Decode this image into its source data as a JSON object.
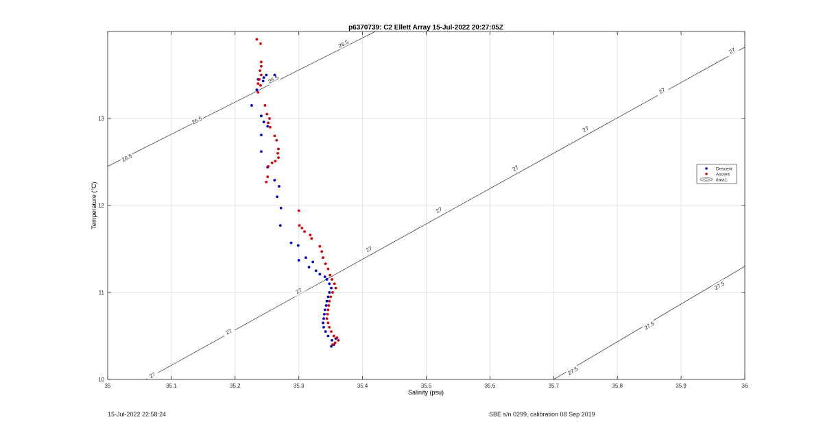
{
  "chart_data": {
    "type": "scatter",
    "title": "p6370739: C2 Ellett Array 15-Jul-2022 20:27:05Z",
    "xlabel": "Salinity (psu)",
    "ylabel": "Temperature (°C)",
    "xlim": [
      35,
      36
    ],
    "ylim": [
      10,
      14
    ],
    "grid": true,
    "xticks": [
      35,
      35.1,
      35.2,
      35.3,
      35.4,
      35.5,
      35.6,
      35.7,
      35.8,
      35.9,
      36
    ],
    "xtick_labels": [
      "35",
      "35.1",
      "35.2",
      "35.3",
      "35.4",
      "35.5",
      "35.6",
      "35.7",
      "35.8",
      "35.9",
      "36"
    ],
    "yticks": [
      10,
      11,
      12,
      13
    ],
    "ytick_labels": [
      "10",
      "11",
      "12",
      "13"
    ],
    "legend_position": "right",
    "legend": [
      "Descent",
      "Ascent",
      "data1"
    ],
    "series": [
      {
        "name": "Descent",
        "color": "#0000cc",
        "points": [
          [
            35.249,
            13.5
          ],
          [
            35.262,
            13.5
          ],
          [
            35.245,
            13.47
          ],
          [
            35.236,
            13.45
          ],
          [
            35.244,
            13.43
          ],
          [
            35.234,
            13.33
          ],
          [
            35.226,
            13.15
          ],
          [
            35.241,
            13.03
          ],
          [
            35.245,
            12.96
          ],
          [
            35.251,
            12.91
          ],
          [
            35.241,
            12.81
          ],
          [
            35.241,
            12.62
          ],
          [
            35.251,
            12.44
          ],
          [
            35.262,
            12.29
          ],
          [
            35.269,
            12.22
          ],
          [
            35.266,
            12.1
          ],
          [
            35.272,
            11.97
          ],
          [
            35.271,
            11.77
          ],
          [
            35.288,
            11.57
          ],
          [
            35.299,
            11.54
          ],
          [
            35.311,
            11.4
          ],
          [
            35.3,
            11.37
          ],
          [
            35.322,
            11.35
          ],
          [
            35.316,
            11.29
          ],
          [
            35.327,
            11.25
          ],
          [
            35.333,
            11.21
          ],
          [
            35.341,
            11.18
          ],
          [
            35.344,
            11.15
          ],
          [
            35.348,
            11.1
          ],
          [
            35.351,
            11.05
          ],
          [
            35.348,
            11.0
          ],
          [
            35.346,
            10.95
          ],
          [
            35.344,
            10.9
          ],
          [
            35.343,
            10.85
          ],
          [
            35.341,
            10.8
          ],
          [
            35.34,
            10.75
          ],
          [
            35.339,
            10.7
          ],
          [
            35.338,
            10.65
          ],
          [
            35.339,
            10.6
          ],
          [
            35.342,
            10.55
          ],
          [
            35.346,
            10.5
          ],
          [
            35.352,
            10.45
          ],
          [
            35.355,
            10.4
          ],
          [
            35.351,
            10.38
          ],
          [
            35.358,
            10.47
          ]
        ]
      },
      {
        "name": "Ascent",
        "color": "#dd0000",
        "points": [
          [
            35.234,
            13.91
          ],
          [
            35.24,
            13.86
          ],
          [
            35.241,
            13.65
          ],
          [
            35.241,
            13.6
          ],
          [
            35.239,
            13.55
          ],
          [
            35.241,
            13.5
          ],
          [
            35.238,
            13.45
          ],
          [
            35.236,
            13.4
          ],
          [
            35.24,
            13.38
          ],
          [
            35.236,
            13.3
          ],
          [
            35.247,
            13.15
          ],
          [
            35.25,
            13.05
          ],
          [
            35.254,
            13.0
          ],
          [
            35.252,
            12.95
          ],
          [
            35.255,
            12.9
          ],
          [
            35.262,
            12.8
          ],
          [
            35.265,
            12.75
          ],
          [
            35.268,
            12.65
          ],
          [
            35.267,
            12.6
          ],
          [
            35.268,
            12.55
          ],
          [
            35.263,
            12.51
          ],
          [
            35.258,
            12.49
          ],
          [
            35.252,
            12.45
          ],
          [
            35.251,
            12.33
          ],
          [
            35.249,
            12.27
          ],
          [
            35.3,
            11.94
          ],
          [
            35.301,
            11.77
          ],
          [
            35.305,
            11.74
          ],
          [
            35.309,
            11.7
          ],
          [
            35.318,
            11.66
          ],
          [
            35.32,
            11.62
          ],
          [
            35.333,
            11.53
          ],
          [
            35.336,
            11.47
          ],
          [
            35.338,
            11.4
          ],
          [
            35.342,
            11.33
          ],
          [
            35.346,
            11.27
          ],
          [
            35.349,
            11.2
          ],
          [
            35.352,
            11.15
          ],
          [
            35.356,
            11.1
          ],
          [
            35.358,
            11.05
          ],
          [
            35.353,
            11.0
          ],
          [
            35.35,
            10.95
          ],
          [
            35.348,
            10.9
          ],
          [
            35.347,
            10.85
          ],
          [
            35.346,
            10.8
          ],
          [
            35.345,
            10.75
          ],
          [
            35.344,
            10.7
          ],
          [
            35.346,
            10.65
          ],
          [
            35.348,
            10.6
          ],
          [
            35.351,
            10.55
          ],
          [
            35.355,
            10.5
          ],
          [
            35.36,
            10.48
          ],
          [
            35.362,
            10.45
          ],
          [
            35.357,
            10.42
          ],
          [
            35.353,
            10.4
          ]
        ]
      }
    ],
    "contours": [
      {
        "label": "26.5",
        "color": "#444444",
        "path": [
          [
            35.0,
            12.45
          ],
          [
            35.42,
            14.0
          ]
        ],
        "labels_at": [
          [
            35.03,
            12.55
          ],
          [
            35.14,
            12.98
          ],
          [
            35.26,
            13.45
          ],
          [
            35.37,
            13.86
          ]
        ]
      },
      {
        "label": "27",
        "color": "#444444",
        "path": [
          [
            35.06,
            10.0
          ],
          [
            36.0,
            13.82
          ]
        ],
        "labels_at": [
          [
            35.07,
            10.05
          ],
          [
            35.19,
            10.55
          ],
          [
            35.3,
            11.02
          ],
          [
            35.41,
            11.5
          ],
          [
            35.52,
            11.95
          ],
          [
            35.64,
            12.43
          ],
          [
            35.75,
            12.88
          ],
          [
            35.87,
            13.32
          ],
          [
            35.98,
            13.78
          ]
        ]
      },
      {
        "label": "27.5",
        "color": "#444444",
        "path": [
          [
            35.7,
            10.0
          ],
          [
            36.0,
            11.3
          ]
        ],
        "labels_at": [
          [
            35.73,
            10.1
          ],
          [
            35.85,
            10.62
          ],
          [
            35.96,
            11.08
          ]
        ]
      }
    ]
  },
  "footer": {
    "left": "15-Jul-2022 22:58:24",
    "right": "SBE s/n 0299, calibration 08 Sep 2019"
  }
}
